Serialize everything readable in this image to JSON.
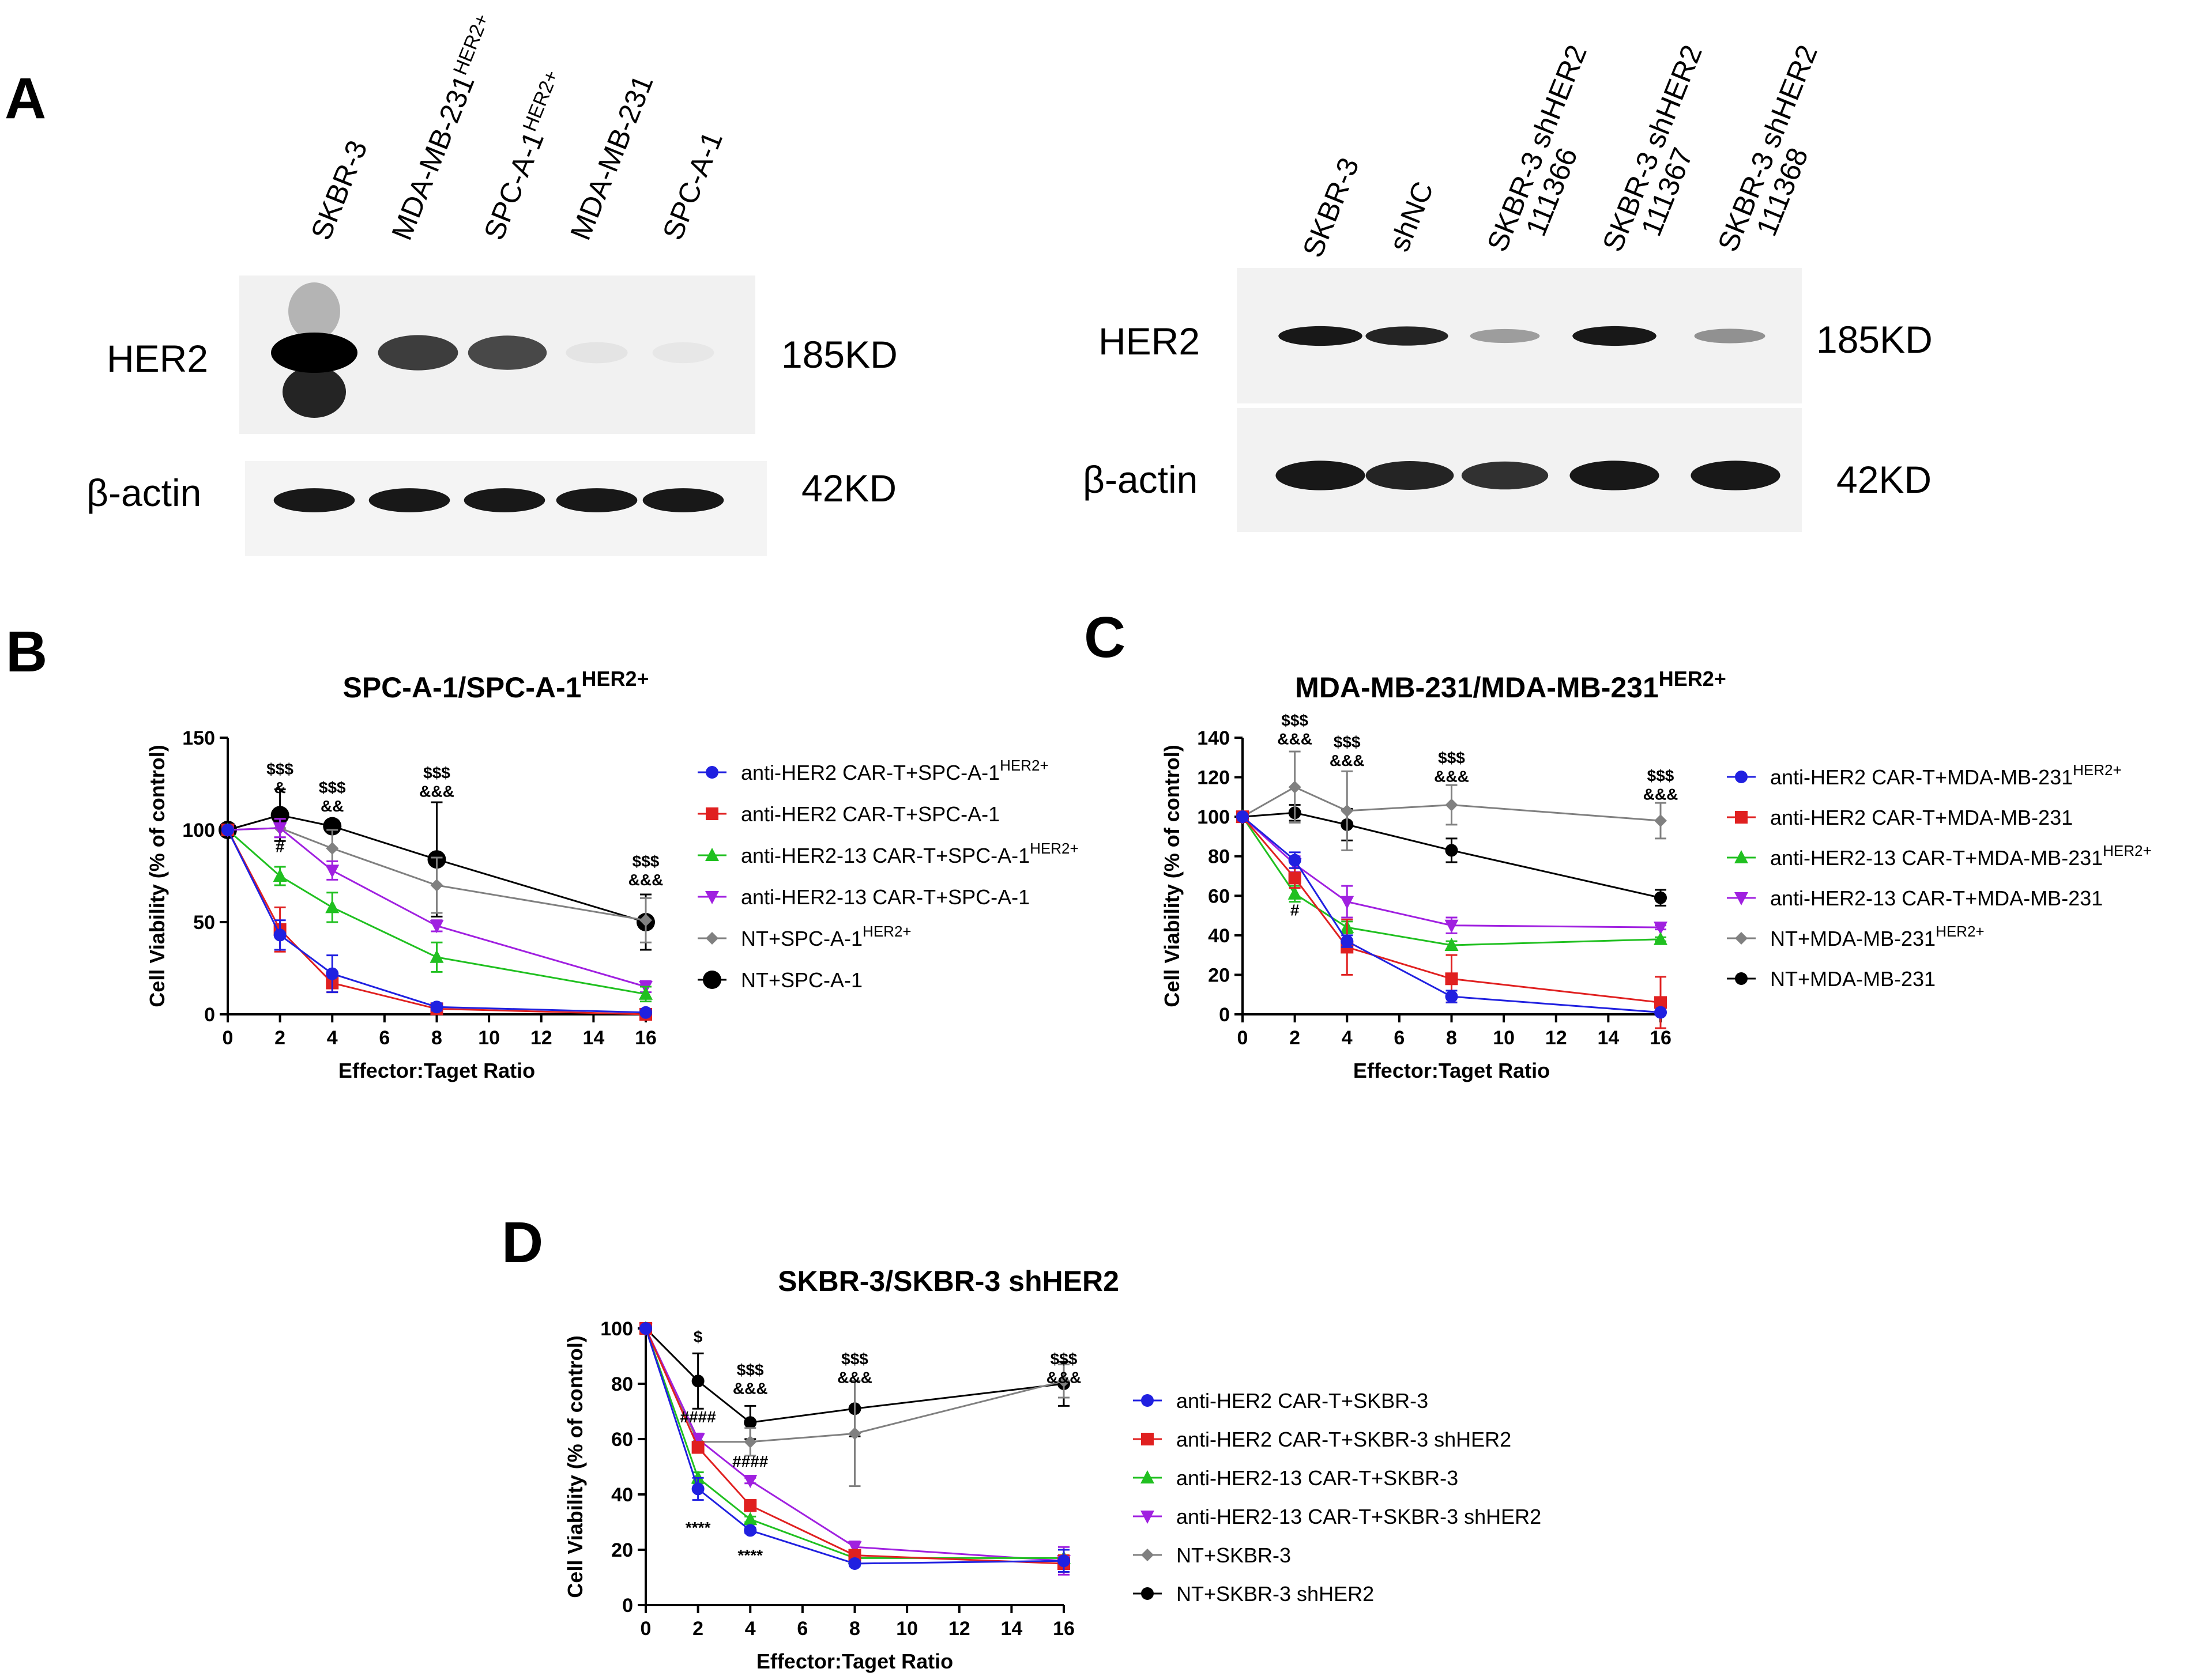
{
  "panels": {
    "a": "A",
    "b": "B",
    "c": "C",
    "d": "D"
  },
  "western_blot": {
    "left": {
      "lanes": [
        {
          "text": "SKBR-3",
          "sup": ""
        },
        {
          "text": "MDA-MB-231",
          "sup": "HER2+"
        },
        {
          "text": "SPC-A-1",
          "sup": "HER2+"
        },
        {
          "text": "MDA-MB-231",
          "sup": ""
        },
        {
          "text": "SPC-A-1",
          "sup": ""
        }
      ],
      "her2_label": "HER2",
      "actin_label": "β-actin",
      "her2_size": "185KD",
      "actin_size": "42KD",
      "her2_intensity": [
        1.0,
        0.75,
        0.7,
        0.05,
        0.04
      ],
      "actin_intensity": [
        0.9,
        0.9,
        0.9,
        0.9,
        0.9
      ]
    },
    "right": {
      "lanes": [
        {
          "line1": "SKBR-3",
          "line2": ""
        },
        {
          "line1": "shNC",
          "line2": ""
        },
        {
          "line1": "SKBR-3 shHER2",
          "line2": "111366"
        },
        {
          "line1": "SKBR-3 shHER2",
          "line2": "111367"
        },
        {
          "line1": "SKBR-3 shHER2",
          "line2": "111368"
        }
      ],
      "her2_label": "HER2",
      "actin_label": "β-actin",
      "her2_size": "185KD",
      "actin_size": "42KD",
      "her2_intensity": [
        0.9,
        0.85,
        0.35,
        0.9,
        0.4
      ],
      "actin_intensity": [
        0.9,
        0.85,
        0.8,
        0.9,
        0.9
      ]
    }
  },
  "chart_data": [
    {
      "id": "B",
      "type": "line",
      "title": "SPC-A-1/SPC-A-1",
      "title_sup": "HER2+",
      "xlabel": "Effector:Taget Ratio",
      "ylabel": "Cell Viability (% of control)",
      "x": [
        0,
        2,
        4,
        8,
        16
      ],
      "xlim": [
        0,
        16
      ],
      "xticks": [
        0,
        2,
        4,
        6,
        8,
        10,
        12,
        14,
        16
      ],
      "ylim": [
        0,
        150
      ],
      "yticks": [
        0,
        50,
        100,
        150
      ],
      "legend_position": "right",
      "series": [
        {
          "name": "anti-HER2 CAR-T+SPC-A-1",
          "name_sup": "HER2+",
          "color": "#2020e0",
          "marker": "circle",
          "values": [
            100,
            43,
            22,
            4,
            1
          ],
          "err": [
            0,
            8,
            10,
            2,
            1
          ]
        },
        {
          "name": "anti-HER2 CAR-T+SPC-A-1",
          "name_sup": "",
          "color": "#e02020",
          "marker": "square",
          "values": [
            100,
            46,
            17,
            3,
            0
          ],
          "err": [
            0,
            12,
            5,
            1,
            1
          ]
        },
        {
          "name": "anti-HER2-13 CAR-T+SPC-A-1",
          "name_sup": "HER2+",
          "color": "#20c020",
          "marker": "triangle-up",
          "values": [
            100,
            75,
            58,
            31,
            11
          ],
          "err": [
            0,
            5,
            8,
            8,
            4
          ]
        },
        {
          "name": "anti-HER2-13 CAR-T+SPC-A-1",
          "name_sup": "",
          "color": "#a020e0",
          "marker": "triangle-down",
          "values": [
            100,
            101,
            78,
            48,
            15
          ],
          "err": [
            0,
            5,
            5,
            3,
            3
          ]
        },
        {
          "name": "NT+SPC-A-1",
          "name_sup": "HER2+",
          "color": "#808080",
          "marker": "diamond",
          "values": [
            100,
            101,
            90,
            70,
            51
          ],
          "err": [
            0,
            5,
            10,
            15,
            12
          ]
        },
        {
          "name": "NT+SPC-A-1",
          "name_sup": "",
          "color": "#000000",
          "marker": "circle-big",
          "values": [
            100,
            108,
            102,
            84,
            50
          ],
          "err": [
            0,
            14,
            0,
            31,
            15
          ]
        }
      ],
      "annotations": [
        {
          "x": 2,
          "y": 130,
          "lines": [
            "$$$",
            "&"
          ]
        },
        {
          "x": 2,
          "y": 88,
          "lines": [
            "#"
          ]
        },
        {
          "x": 4,
          "y": 120,
          "lines": [
            "$$$",
            "&&"
          ]
        },
        {
          "x": 8,
          "y": 128,
          "lines": [
            "$$$",
            "&&&"
          ]
        },
        {
          "x": 16,
          "y": 80,
          "lines": [
            "$$$",
            "&&&"
          ]
        }
      ]
    },
    {
      "id": "C",
      "type": "line",
      "title": "MDA-MB-231/MDA-MB-231",
      "title_sup": "HER2+",
      "xlabel": "Effector:Taget Ratio",
      "ylabel": "Cell Viability (% of control)",
      "x": [
        0,
        2,
        4,
        8,
        16
      ],
      "xlim": [
        0,
        16
      ],
      "xticks": [
        0,
        2,
        4,
        6,
        8,
        10,
        12,
        14,
        16
      ],
      "ylim": [
        0,
        140
      ],
      "yticks": [
        0,
        20,
        40,
        60,
        80,
        100,
        120,
        140
      ],
      "legend_position": "right",
      "series": [
        {
          "name": "anti-HER2 CAR-T+MDA-MB-231",
          "name_sup": "HER2+",
          "color": "#2020e0",
          "marker": "circle",
          "values": [
            100,
            78,
            37,
            9,
            1
          ],
          "err": [
            0,
            4,
            3,
            3,
            1
          ]
        },
        {
          "name": "anti-HER2 CAR-T+MDA-MB-231",
          "name_sup": "",
          "color": "#e02020",
          "marker": "square",
          "values": [
            100,
            69,
            34,
            18,
            6
          ],
          "err": [
            0,
            5,
            14,
            12,
            13
          ]
        },
        {
          "name": "anti-HER2-13 CAR-T+MDA-MB-231",
          "name_sup": "HER2+",
          "color": "#20c020",
          "marker": "triangle-up",
          "values": [
            100,
            61,
            44,
            35,
            38
          ],
          "err": [
            0,
            4,
            3,
            2,
            1
          ]
        },
        {
          "name": "anti-HER2-13 CAR-T+MDA-MB-231",
          "name_sup": "",
          "color": "#a020e0",
          "marker": "triangle-down",
          "values": [
            100,
            76,
            57,
            45,
            44
          ],
          "err": [
            0,
            4,
            8,
            4,
            1
          ]
        },
        {
          "name": "NT+MDA-MB-231",
          "name_sup": "HER2+",
          "color": "#808080",
          "marker": "diamond",
          "values": [
            100,
            115,
            103,
            106,
            98
          ],
          "err": [
            0,
            18,
            20,
            10,
            9
          ]
        },
        {
          "name": "NT+MDA-MB-231",
          "name_sup": "",
          "color": "#000000",
          "marker": "circle",
          "values": [
            100,
            102,
            96,
            83,
            59
          ],
          "err": [
            0,
            4,
            8,
            6,
            4
          ]
        }
      ],
      "annotations": [
        {
          "x": 2,
          "y": 146,
          "lines": [
            "$$$",
            "&&&"
          ]
        },
        {
          "x": 2,
          "y": 50,
          "lines": [
            "#"
          ]
        },
        {
          "x": 4,
          "y": 135,
          "lines": [
            "$$$",
            "&&&"
          ]
        },
        {
          "x": 8,
          "y": 127,
          "lines": [
            "$$$",
            "&&&"
          ]
        },
        {
          "x": 16,
          "y": 118,
          "lines": [
            "$$$",
            "&&&"
          ]
        }
      ]
    },
    {
      "id": "D",
      "type": "line",
      "title": "SKBR-3/SKBR-3 shHER2",
      "title_sup": "",
      "xlabel": "Effector:Taget Ratio",
      "ylabel": "Cell Viability (% of control)",
      "x": [
        0,
        2,
        4,
        8,
        16
      ],
      "xlim": [
        0,
        16
      ],
      "xticks": [
        0,
        2,
        4,
        6,
        8,
        10,
        12,
        14,
        16
      ],
      "ylim": [
        0,
        100
      ],
      "yticks": [
        0,
        20,
        40,
        60,
        80,
        100
      ],
      "legend_position": "right",
      "series": [
        {
          "name": "anti-HER2 CAR-T+SKBR-3",
          "name_sup": "",
          "color": "#2020e0",
          "marker": "circle",
          "values": [
            100,
            42,
            27,
            15,
            16
          ],
          "err": [
            0,
            4,
            1,
            1,
            4
          ]
        },
        {
          "name": "anti-HER2 CAR-T+SKBR-3 shHER2",
          "name_sup": "",
          "color": "#e02020",
          "marker": "square",
          "values": [
            100,
            57,
            36,
            18,
            15
          ],
          "err": [
            0,
            2,
            2,
            2,
            3
          ]
        },
        {
          "name": "anti-HER2-13 CAR-T+SKBR-3",
          "name_sup": "",
          "color": "#20c020",
          "marker": "triangle-up",
          "values": [
            100,
            46,
            31,
            17,
            17
          ],
          "err": [
            0,
            2,
            1,
            1,
            1
          ]
        },
        {
          "name": "anti-HER2-13 CAR-T+SKBR-3 shHER2",
          "name_sup": "",
          "color": "#a020e0",
          "marker": "triangle-down",
          "values": [
            100,
            60,
            45,
            21,
            16
          ],
          "err": [
            0,
            2,
            1,
            2,
            5
          ]
        },
        {
          "name": "NT+SKBR-3",
          "name_sup": "",
          "color": "#808080",
          "marker": "diamond",
          "values": [
            100,
            59,
            59,
            62,
            81
          ],
          "err": [
            0,
            0,
            5,
            19,
            6
          ]
        },
        {
          "name": "NT+SKBR-3 shHER2",
          "name_sup": "",
          "color": "#000000",
          "marker": "circle",
          "values": [
            100,
            81,
            66,
            71,
            80
          ],
          "err": [
            0,
            10,
            6,
            10,
            8
          ]
        }
      ],
      "annotations": [
        {
          "x": 2,
          "y": 95,
          "lines": [
            "$"
          ]
        },
        {
          "x": 2,
          "y": 66,
          "lines": [
            "####"
          ]
        },
        {
          "x": 2,
          "y": 26,
          "lines": [
            "****"
          ]
        },
        {
          "x": 4,
          "y": 83,
          "lines": [
            "$$$",
            "&&&"
          ]
        },
        {
          "x": 4,
          "y": 50,
          "lines": [
            "####"
          ]
        },
        {
          "x": 4,
          "y": 16,
          "lines": [
            "****"
          ]
        },
        {
          "x": 8,
          "y": 87,
          "lines": [
            "$$$",
            "&&&"
          ]
        },
        {
          "x": 16,
          "y": 87,
          "lines": [
            "$$$",
            "&&&"
          ]
        }
      ]
    }
  ]
}
